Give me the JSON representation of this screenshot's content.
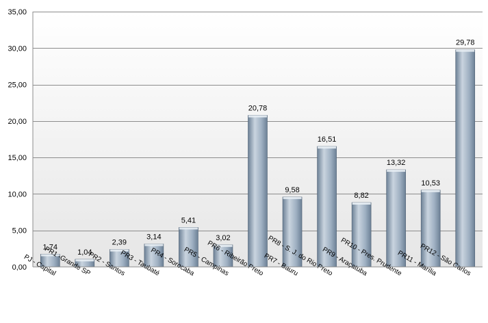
{
  "chart_data": {
    "type": "bar",
    "title": "",
    "xlabel": "",
    "ylabel": "",
    "categories": [
      "PJ - Capital",
      "PR1 -Grande SP",
      "PR2 - Santos",
      "PR3 - Taubaté",
      "PR4 - Sorocaba",
      "PR5 - Campinas",
      "PR6 - Ribeirão Preto",
      "PR7 - Bauru",
      "PR8 - S. J. do Rio Preto",
      "PR9 - Araçatuba",
      "PR10 - Pres. Prudente",
      "PR11 - Marília",
      "PR12 - São Carlos"
    ],
    "values": [
      1.74,
      1.04,
      2.39,
      3.14,
      5.41,
      3.02,
      20.78,
      9.58,
      16.51,
      8.82,
      13.32,
      10.53,
      29.78
    ],
    "value_labels": [
      "1,74",
      "1,04",
      "2,39",
      "3,14",
      "5,41",
      "3,02",
      "20,78",
      "9,58",
      "16,51",
      "8,82",
      "13,32",
      "10,53",
      "29,78"
    ],
    "ylim": [
      0,
      35
    ],
    "yticks": [
      0,
      5,
      10,
      15,
      20,
      25,
      30,
      35
    ],
    "ytick_labels": [
      "0,00",
      "5,00",
      "10,00",
      "15,00",
      "20,00",
      "25,00",
      "30,00",
      "35,00"
    ],
    "grid": true,
    "legend": "none",
    "colors": {
      "bar_light": "#c9d4df",
      "bar_mid": "#9fb0c2",
      "bar_dark": "#6d8196",
      "bar_edge": "#4d5f72",
      "plot_bg_top": "#ffffff",
      "plot_bg_bottom": "#e6e6e6",
      "gridline": "#8c8c8c",
      "axis": "#8c8c8c"
    }
  }
}
